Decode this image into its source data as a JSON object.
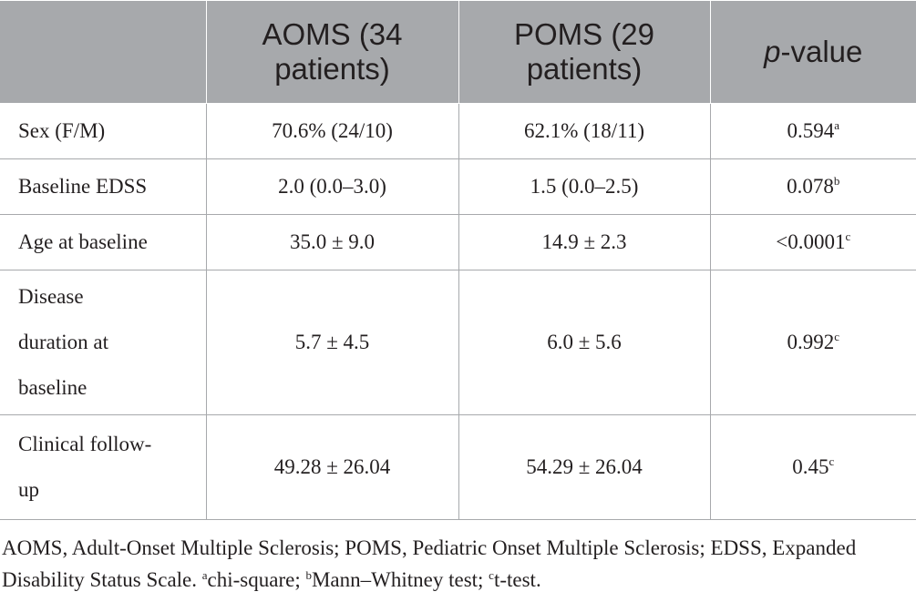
{
  "table": {
    "headers": {
      "col1": "",
      "aoms_line1": "AOMS (34",
      "aoms_line2": "patients)",
      "poms_line1": "POMS (29",
      "poms_line2": "patients)",
      "pvalue_italic": "p",
      "pvalue_rest": "-value"
    },
    "rows": [
      {
        "label": "Sex (F/M)",
        "aoms": "70.6% (24/10)",
        "poms": "62.1% (18/11)",
        "p": "0.594",
        "p_sup": "a"
      },
      {
        "label": "Baseline EDSS",
        "aoms": "2.0 (0.0–3.0)",
        "poms": "1.5 (0.0–2.5)",
        "p": "0.078",
        "p_sup": "b"
      },
      {
        "label": "Age at baseline",
        "aoms": "35.0 ± 9.0",
        "poms": "14.9 ± 2.3",
        "p": "<0.0001",
        "p_sup": "c"
      },
      {
        "label_lines": [
          "Disease",
          "duration at",
          "baseline"
        ],
        "aoms": "5.7 ± 4.5",
        "poms": "6.0 ± 5.6",
        "p": "0.992",
        "p_sup": "c"
      },
      {
        "label_lines": [
          "Clinical follow-",
          "up"
        ],
        "aoms": "49.28 ± 26.04",
        "poms": "54.29 ± 26.04",
        "p": "0.45",
        "p_sup": "c"
      }
    ]
  },
  "footnote": {
    "text_main": "AOMS, Adult-Onset Multiple Sclerosis; POMS, Pediatric Onset Multiple Sclerosis; EDSS, Expanded Disability Status Scale. ",
    "sup_a": "a",
    "text_a": "chi-square; ",
    "sup_b": "b",
    "text_b": "Mann–Whitney test; ",
    "sup_c": "c",
    "text_c": "t-test."
  }
}
